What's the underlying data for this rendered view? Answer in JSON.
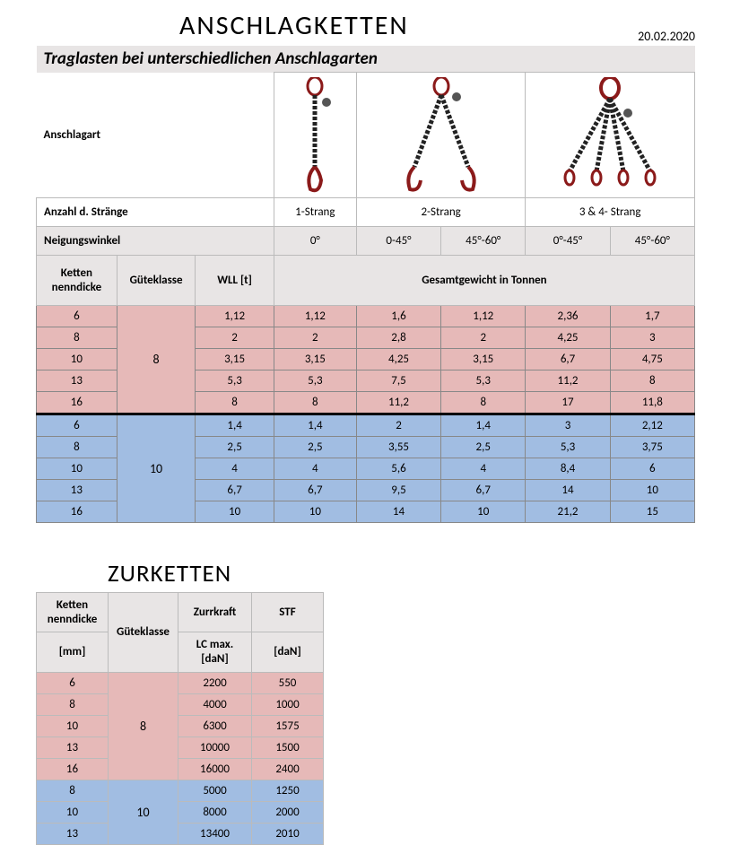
{
  "page": {
    "title": "ANSCHLAGKETTEN",
    "date": "20.02.2020",
    "subtitle": "Traglasten bei unterschiedlichen Anschlagarten"
  },
  "colors": {
    "header_bg": "#e8e5e5",
    "pink": "#e6b9b8",
    "blue": "#a1bde2",
    "ring": "#8b1a1a",
    "chain": "#222222"
  },
  "t1": {
    "anschlagart_label": "Anschlagart",
    "anzahl_label": "Anzahl d. Stränge",
    "anzahl": [
      "1-Strang",
      "2-Strang",
      "3 & 4- Strang"
    ],
    "neig_label": "Neigungswinkel",
    "angles": [
      "0°",
      "0-45°",
      "45°-60°",
      "0°-45°",
      "45°-60°"
    ],
    "colhdr": {
      "ketten": "Ketten\nnenndicke",
      "guete": "Güteklasse",
      "wll": "WLL [t]",
      "gesamt": "Gesamtgewicht in Tonnen"
    },
    "group8": {
      "label": "8",
      "rows": [
        {
          "k": "6",
          "v": [
            "1,12",
            "1,12",
            "1,6",
            "1,12",
            "2,36",
            "1,7"
          ]
        },
        {
          "k": "8",
          "v": [
            "2",
            "2",
            "2,8",
            "2",
            "4,25",
            "3"
          ]
        },
        {
          "k": "10",
          "v": [
            "3,15",
            "3,15",
            "4,25",
            "3,15",
            "6,7",
            "4,75"
          ]
        },
        {
          "k": "13",
          "v": [
            "5,3",
            "5,3",
            "7,5",
            "5,3",
            "11,2",
            "8"
          ]
        },
        {
          "k": "16",
          "v": [
            "8",
            "8",
            "11,2",
            "8",
            "17",
            "11,8"
          ]
        }
      ]
    },
    "group10": {
      "label": "10",
      "rows": [
        {
          "k": "6",
          "v": [
            "1,4",
            "1,4",
            "2",
            "1,4",
            "3",
            "2,12"
          ]
        },
        {
          "k": "8",
          "v": [
            "2,5",
            "2,5",
            "3,55",
            "2,5",
            "5,3",
            "3,75"
          ]
        },
        {
          "k": "10",
          "v": [
            "4",
            "4",
            "5,6",
            "4",
            "8,4",
            "6"
          ]
        },
        {
          "k": "13",
          "v": [
            "6,7",
            "6,7",
            "9,5",
            "6,7",
            "14",
            "10"
          ]
        },
        {
          "k": "16",
          "v": [
            "10",
            "10",
            "14",
            "10",
            "21,2",
            "15"
          ]
        }
      ]
    }
  },
  "t2": {
    "title": "ZURKETTEN",
    "colhdr": {
      "ketten": "Ketten\nnenndicke",
      "mm": "[mm]",
      "guete": "Güteklasse",
      "zurr": "Zurrkraft",
      "lc": "LC max.\n[daN]",
      "stf": "STF",
      "dan": "[daN]"
    },
    "group8": {
      "label": "8",
      "rows": [
        {
          "k": "6",
          "lc": "2200",
          "stf": "550"
        },
        {
          "k": "8",
          "lc": "4000",
          "stf": "1000"
        },
        {
          "k": "10",
          "lc": "6300",
          "stf": "1575"
        },
        {
          "k": "13",
          "lc": "10000",
          "stf": "1500"
        },
        {
          "k": "16",
          "lc": "16000",
          "stf": "2400"
        }
      ]
    },
    "group10": {
      "label": "10",
      "rows": [
        {
          "k": "8",
          "lc": "5000",
          "stf": "1250"
        },
        {
          "k": "10",
          "lc": "8000",
          "stf": "2000"
        },
        {
          "k": "13",
          "lc": "13400",
          "stf": "2010"
        }
      ]
    }
  }
}
